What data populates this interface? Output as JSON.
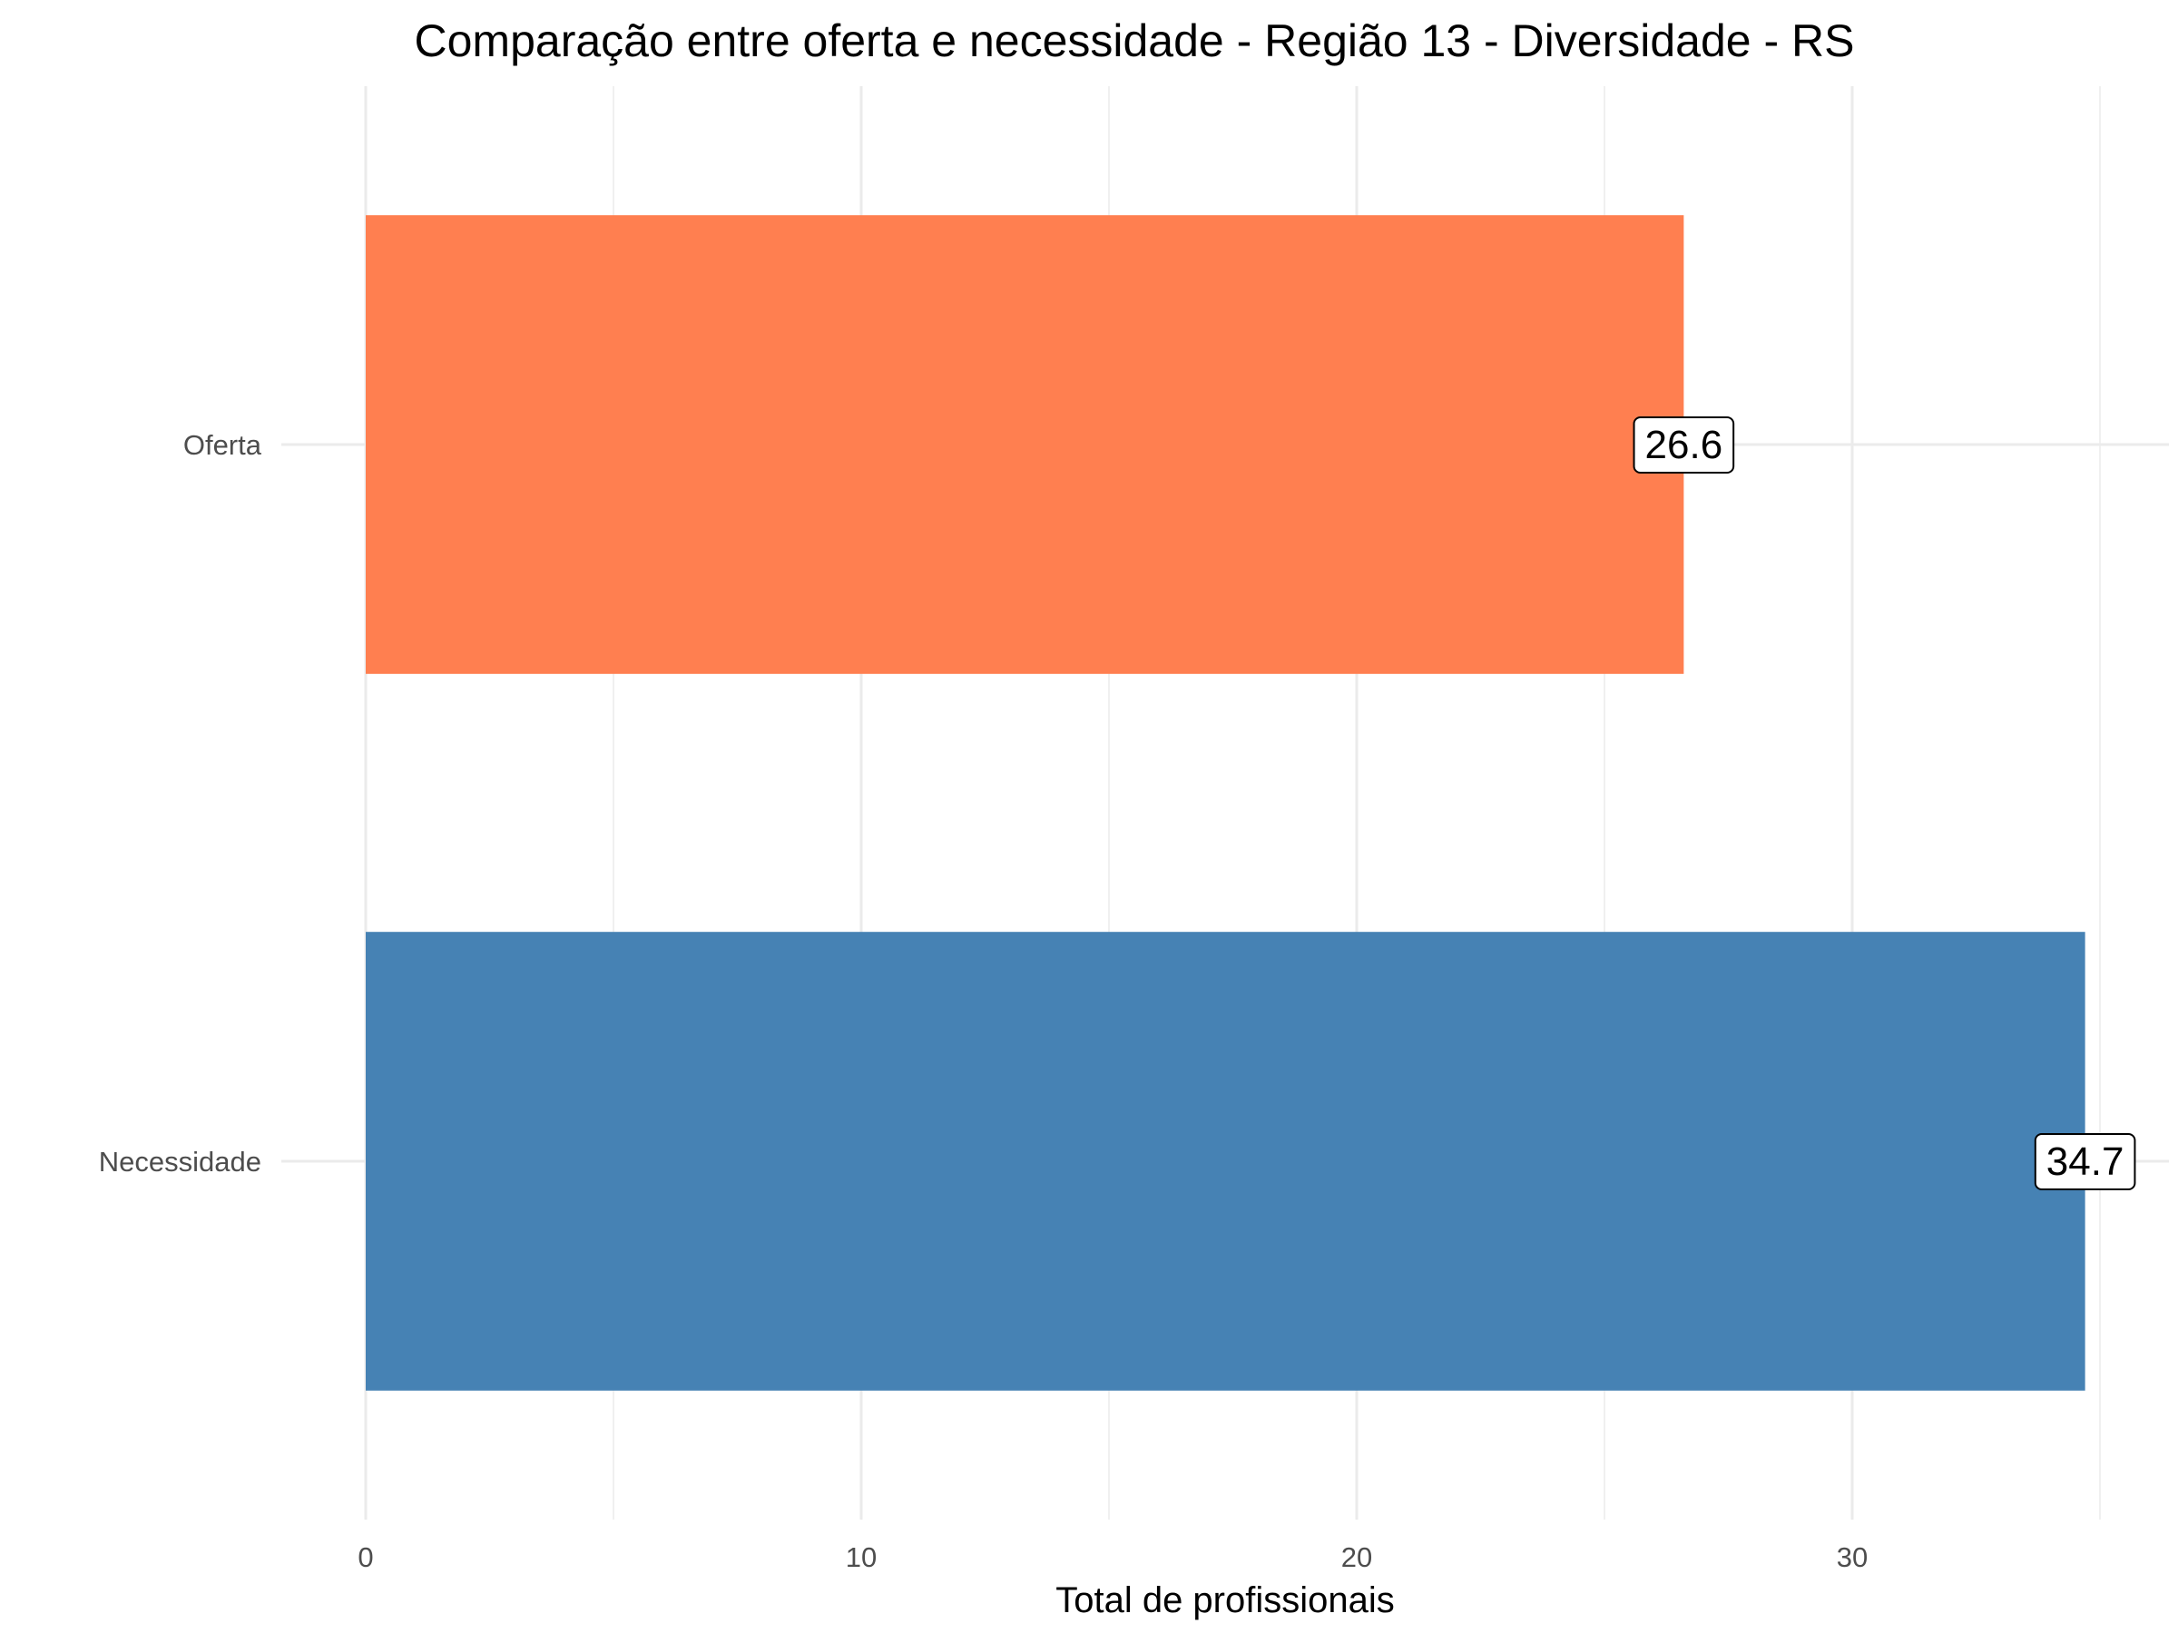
{
  "chart_data": {
    "type": "bar",
    "orientation": "horizontal",
    "title": "Comparação entre oferta e necessidade - Região 13 - Diversidade - RS",
    "xlabel": "Total de profissionais",
    "ylabel": "",
    "categories": [
      "Oferta",
      "Necessidade"
    ],
    "values": [
      26.6,
      34.7
    ],
    "data_labels": [
      "26.6",
      "34.7"
    ],
    "colors": [
      "#FF7F50",
      "#4682B4"
    ],
    "xlim": [
      0,
      36.5
    ],
    "xticks": [
      0,
      10,
      20,
      30
    ],
    "xtick_labels": [
      "0",
      "10",
      "20",
      "30"
    ],
    "grid": true,
    "legend": "none"
  }
}
